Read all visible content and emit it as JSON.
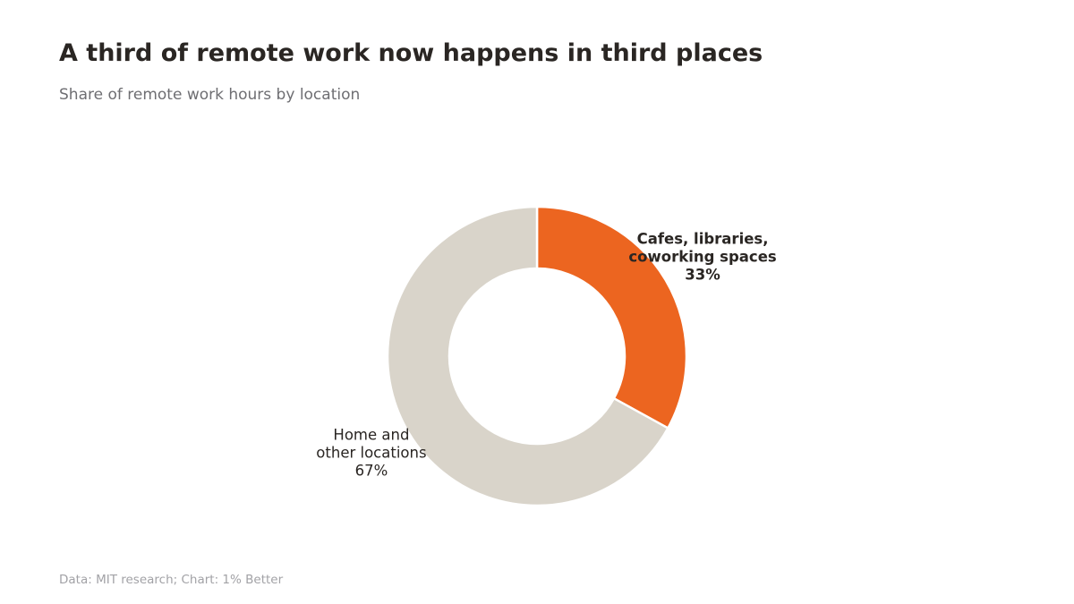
{
  "chart_data": {
    "type": "donut",
    "title": "A third of remote work now happens in third places",
    "subtitle": "Share of remote work hours by location",
    "source": "Data: MIT research; Chart: 1% Better",
    "categories": [
      "Cafes, libraries,\ncoworking spaces",
      "Home and\nother locations"
    ],
    "values": [
      33,
      67
    ],
    "value_labels": [
      "33%",
      "67%"
    ],
    "colors": [
      "#ec6520",
      "#d9d4ca"
    ]
  }
}
